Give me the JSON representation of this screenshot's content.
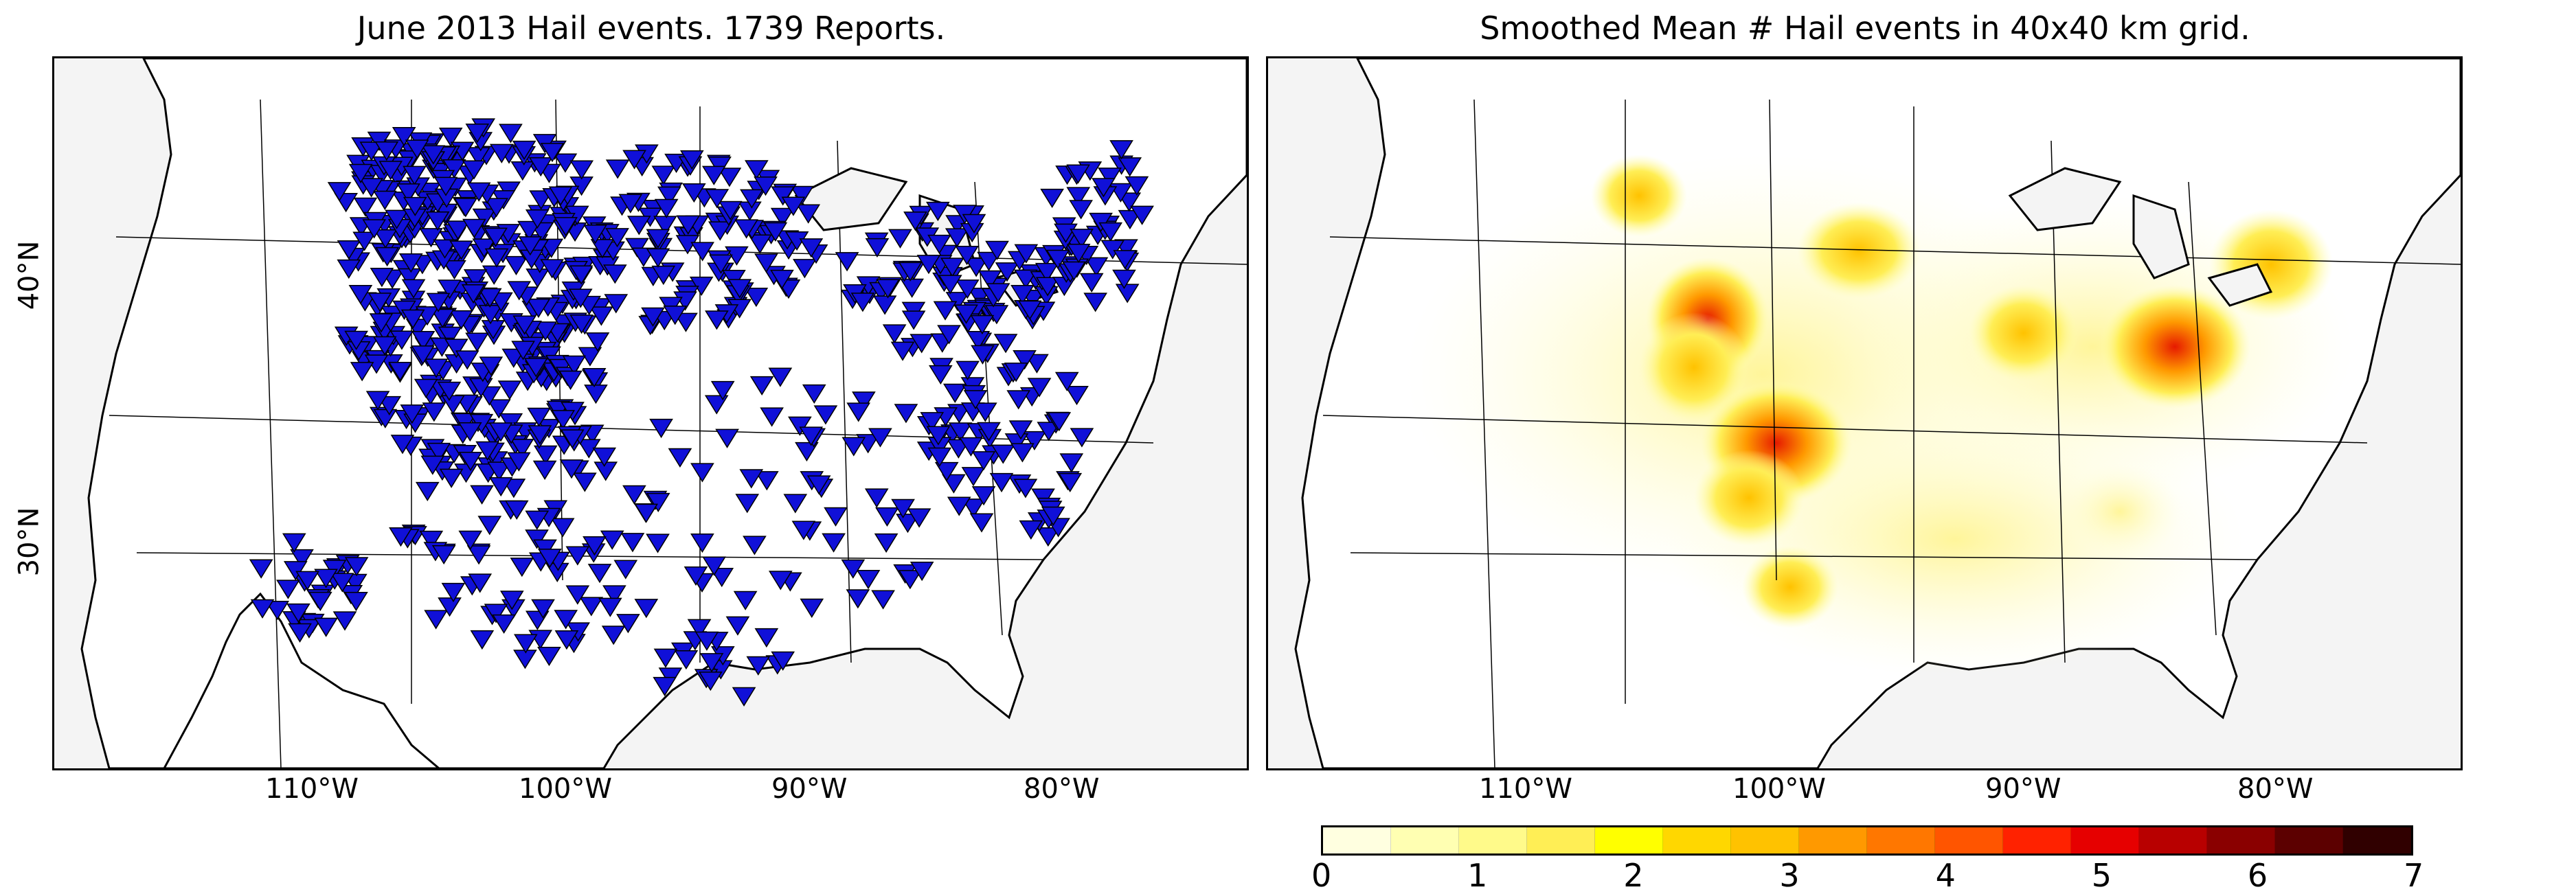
{
  "left_panel": {
    "title": "June 2013 Hail events. 1739 Reports.",
    "x_ticks": [
      "110°W",
      "100°W",
      "90°W",
      "80°W"
    ],
    "y_ticks": [
      "40°N",
      "30°N"
    ]
  },
  "right_panel": {
    "title": "Smoothed Mean # Hail events in 40x40 km grid.",
    "x_ticks": [
      "110°W",
      "100°W",
      "90°W",
      "80°W"
    ]
  },
  "colorbar": {
    "ticks": [
      "0",
      "1",
      "2",
      "3",
      "4",
      "5",
      "6",
      "7"
    ],
    "colors": [
      "#ffffe0",
      "#ffffb2",
      "#fffa8a",
      "#ffee55",
      "#ffff00",
      "#ffd700",
      "#ffc200",
      "#ff9900",
      "#ff7700",
      "#ff5500",
      "#ff2200",
      "#e60000",
      "#b80000",
      "#8a0000",
      "#5c0000",
      "#300000"
    ]
  },
  "colors": {
    "marker": "#1010d8",
    "ocean": "#f4f4f4",
    "land": "#ffffff"
  }
}
